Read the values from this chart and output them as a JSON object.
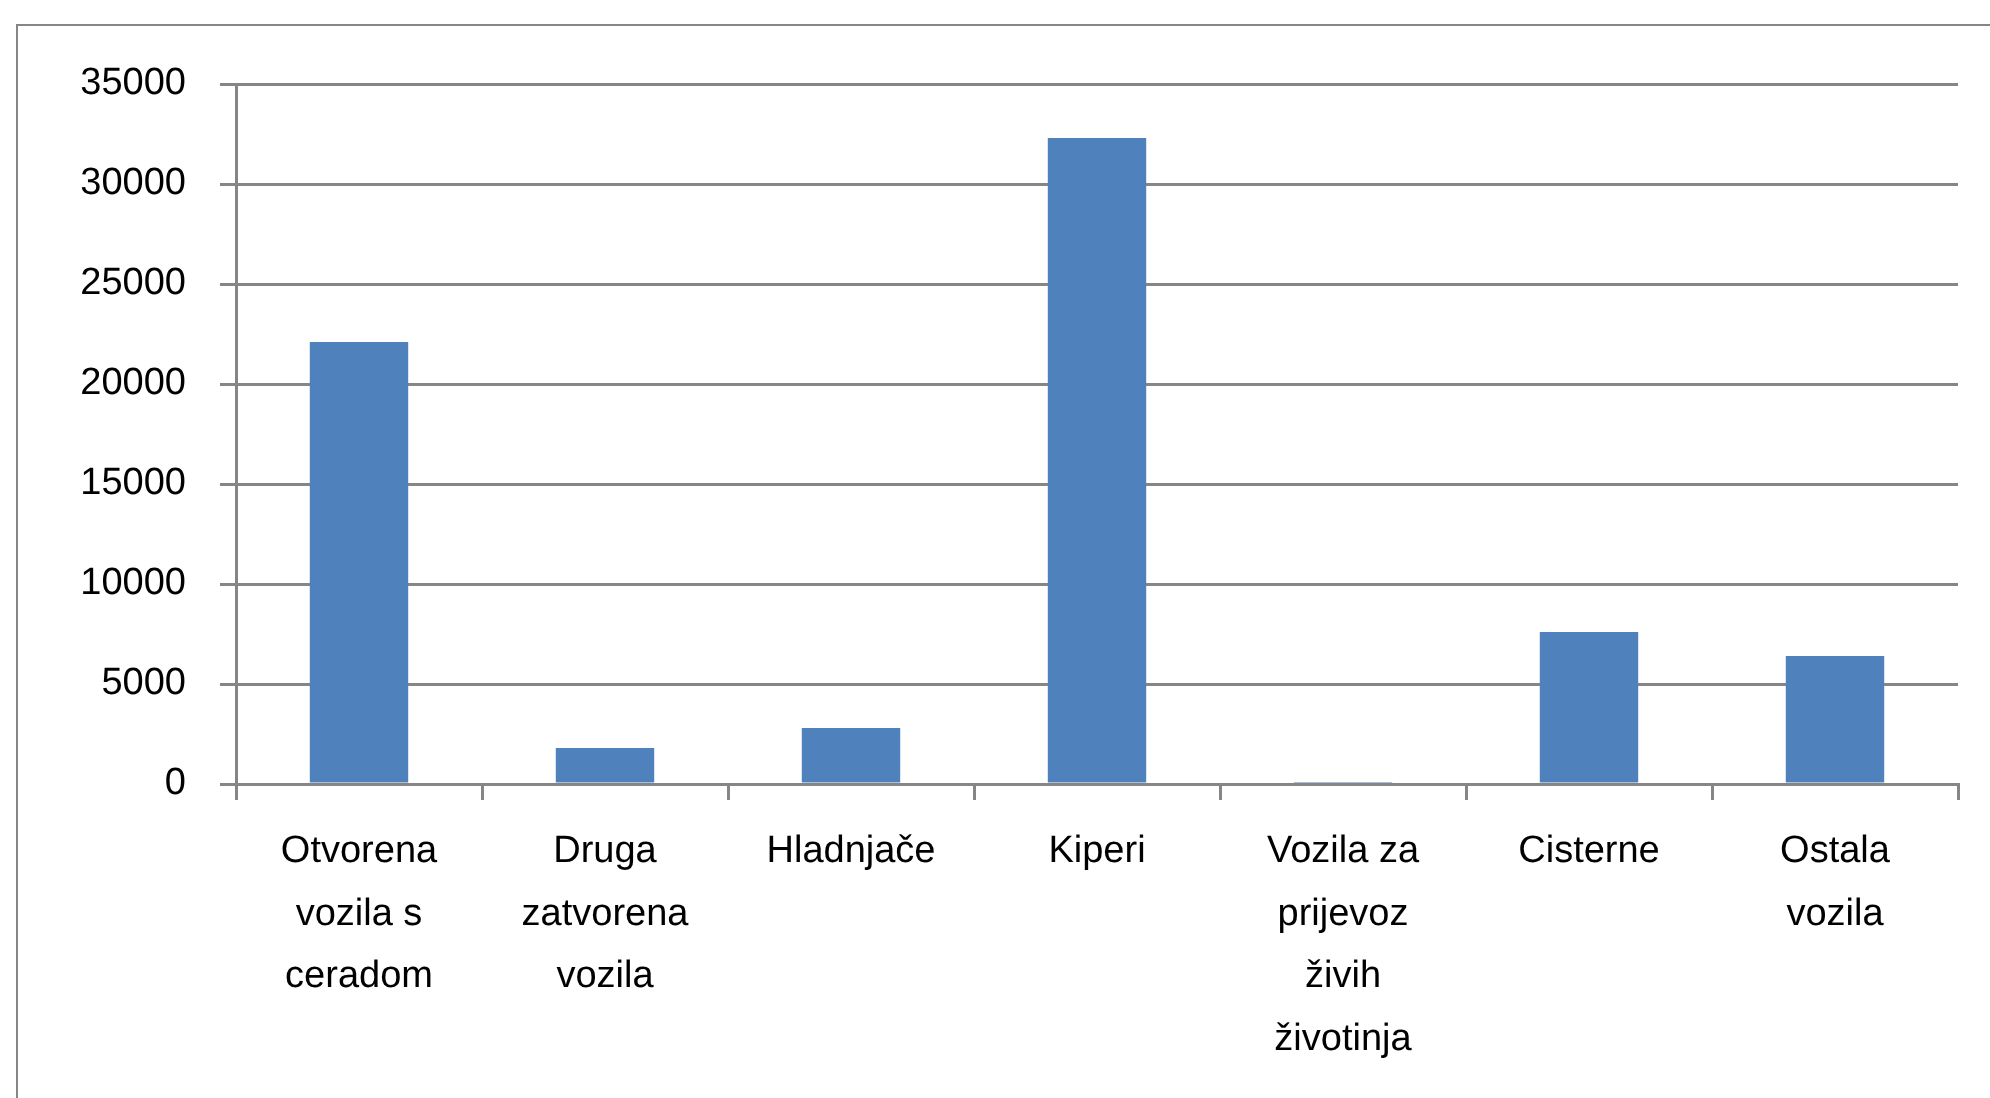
{
  "chart_data": {
    "type": "bar",
    "categories": [
      "Otvorena vozila s ceradom",
      "Druga zatvorena vozila",
      "Hladnjače",
      "Kiperi",
      "Vozila za prijevoz živih životinja",
      "Cisterne",
      "Ostala vozila"
    ],
    "values": [
      22100,
      1800,
      2800,
      32300,
      100,
      7600,
      6400
    ],
    "color": "#4f81bd",
    "ylim": [
      0,
      35000
    ],
    "yticks": [
      0,
      5000,
      10000,
      15000,
      20000,
      25000,
      30000,
      35000
    ],
    "grid": "y"
  }
}
